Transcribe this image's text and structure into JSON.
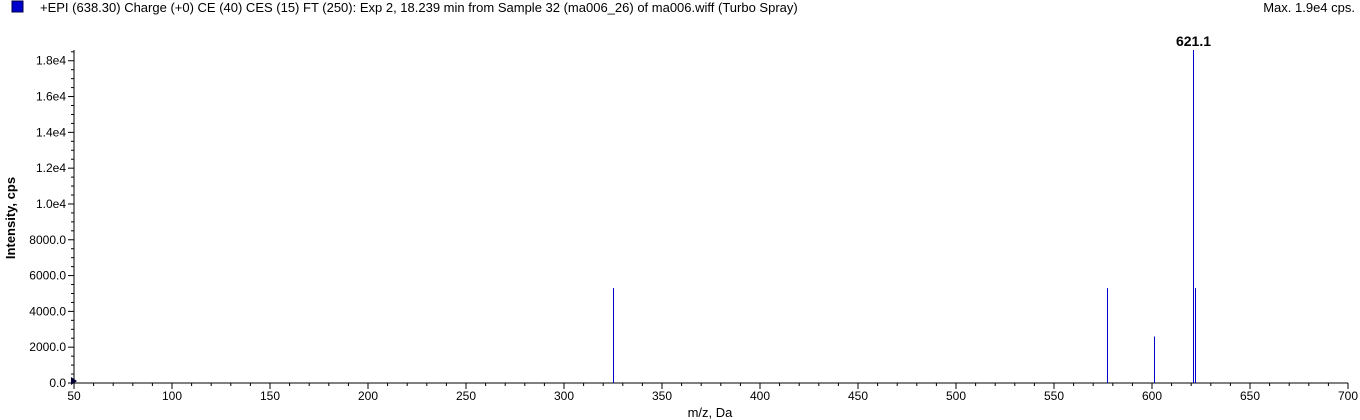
{
  "header": {
    "spectrum_title": "+EPI (638.30) Charge (+0) CE (40) CES (15) FT (250): Exp 2, 18.239 min from Sample 32 (ma006_26) of ma006.wiff (Turbo Spray)",
    "max_label": "Max. 1.9e4 cps.",
    "series_color": "#0000cc"
  },
  "chart_data": {
    "type": "bar",
    "title": "+EPI (638.30) Charge (+0) CE (40) CES (15) FT (250): Exp 2, 18.239 min from Sample 32 (ma006_26) of ma006.wiff (Turbo Spray)",
    "xlabel": "m/z, Da",
    "ylabel": "Intensity, cps",
    "xlim": [
      50,
      700
    ],
    "ylim": [
      0,
      18600
    ],
    "x_ticks": [
      50,
      100,
      150,
      200,
      250,
      300,
      350,
      400,
      450,
      500,
      550,
      600,
      650,
      700
    ],
    "x_tick_labels": [
      "50",
      "100",
      "150",
      "200",
      "250",
      "300",
      "350",
      "400",
      "450",
      "500",
      "550",
      "600",
      "650",
      "700"
    ],
    "y_ticks": [
      0,
      2000,
      4000,
      6000,
      8000,
      10000,
      12000,
      14000,
      16000,
      18000
    ],
    "y_tick_labels": [
      "0.0",
      "2000.0",
      "4000.0",
      "6000.0",
      "8000.0",
      "1.0e4",
      "1.2e4",
      "1.4e4",
      "1.6e4",
      "1.8e4"
    ],
    "peaks": [
      {
        "mz": 325.1,
        "intensity": 5300
      },
      {
        "mz": 577.1,
        "intensity": 5300
      },
      {
        "mz": 601.1,
        "intensity": 2600
      },
      {
        "mz": 621.1,
        "intensity": 18600,
        "label": "621.1"
      },
      {
        "mz": 622.1,
        "intensity": 5300
      }
    ],
    "grid": false,
    "color": "#0000cc"
  }
}
